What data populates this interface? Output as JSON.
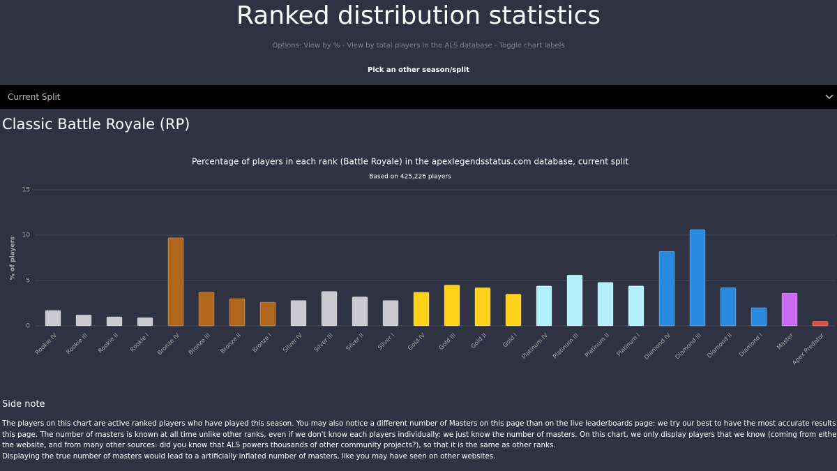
{
  "header": {
    "title": "Ranked distribution statistics",
    "options": "Options: View by % - View by total players in the ALS database - Toggle chart labels",
    "pick_label": "Pick an other season/split",
    "dropdown": "Current Split"
  },
  "section_title": "Classic Battle Royale (RP)",
  "chart_data": {
    "type": "bar",
    "title": "Percentage of players in each rank (Battle Royale) in the apexlegendsstatus.com database, current split",
    "subtitle": "Based on 425,226 players",
    "y_label": "% of players",
    "categories": [
      "Rookie IV",
      "Rookie III",
      "Rookie II",
      "Rookie I",
      "Bronze IV",
      "Bronze III",
      "Bronze II",
      "Bronze I",
      "Silver IV",
      "Silver III",
      "Silver II",
      "Silver I",
      "Gold IV",
      "Gold III",
      "Gold II",
      "Gold I",
      "Platinum IV",
      "Platinum III",
      "Platinum II",
      "Platinum I",
      "Diamond IV",
      "Diamond III",
      "Diamond II",
      "Diamond I",
      "Master",
      "Apex Predator"
    ],
    "values": [
      1.7,
      1.2,
      1.0,
      0.9,
      9.7,
      3.7,
      3.0,
      2.6,
      2.8,
      3.8,
      3.2,
      2.8,
      3.7,
      4.5,
      4.2,
      3.5,
      4.4,
      5.6,
      4.8,
      4.4,
      8.2,
      10.6,
      4.2,
      2.0,
      3.6,
      0.5
    ],
    "colors": [
      "#c9c9cf",
      "#c9c9cf",
      "#c9c9cf",
      "#c9c9cf",
      "#b0671c",
      "#b0671c",
      "#b0671c",
      "#b0671c",
      "#c9c9cf",
      "#c9c9cf",
      "#c9c9cf",
      "#c9c9cf",
      "#ffd21a",
      "#ffd21a",
      "#ffd21a",
      "#ffd21a",
      "#b3f0fb",
      "#b3f0fb",
      "#b3f0fb",
      "#b3f0fb",
      "#2a8ae0",
      "#2a8ae0",
      "#2a8ae0",
      "#2a8ae0",
      "#c86bf2",
      "#e24a4a"
    ],
    "ylim": [
      0,
      15
    ],
    "yticks": [
      0,
      5,
      10,
      15
    ],
    "grid": true
  },
  "side_note": {
    "title": "Side note",
    "paragraphs": [
      "The players on this chart are active ranked players who have played this season. You may also notice a different number of Masters on this page than on the live leaderboards page: we try our best to have the most accurate results on this page. The number of masters is known at all time unlike other ranks, even if we don't know each players individually: we just know the number of masters. On this chart, we only display players that we know (coming from either the website, and from many other sources: did you know that ALS powers thousands of other community projects?), so that it is the same as other ranks.",
      "Displaying the true number of masters would lead to a artificially inflated number of masters, like you may have seen on other websites."
    ]
  }
}
